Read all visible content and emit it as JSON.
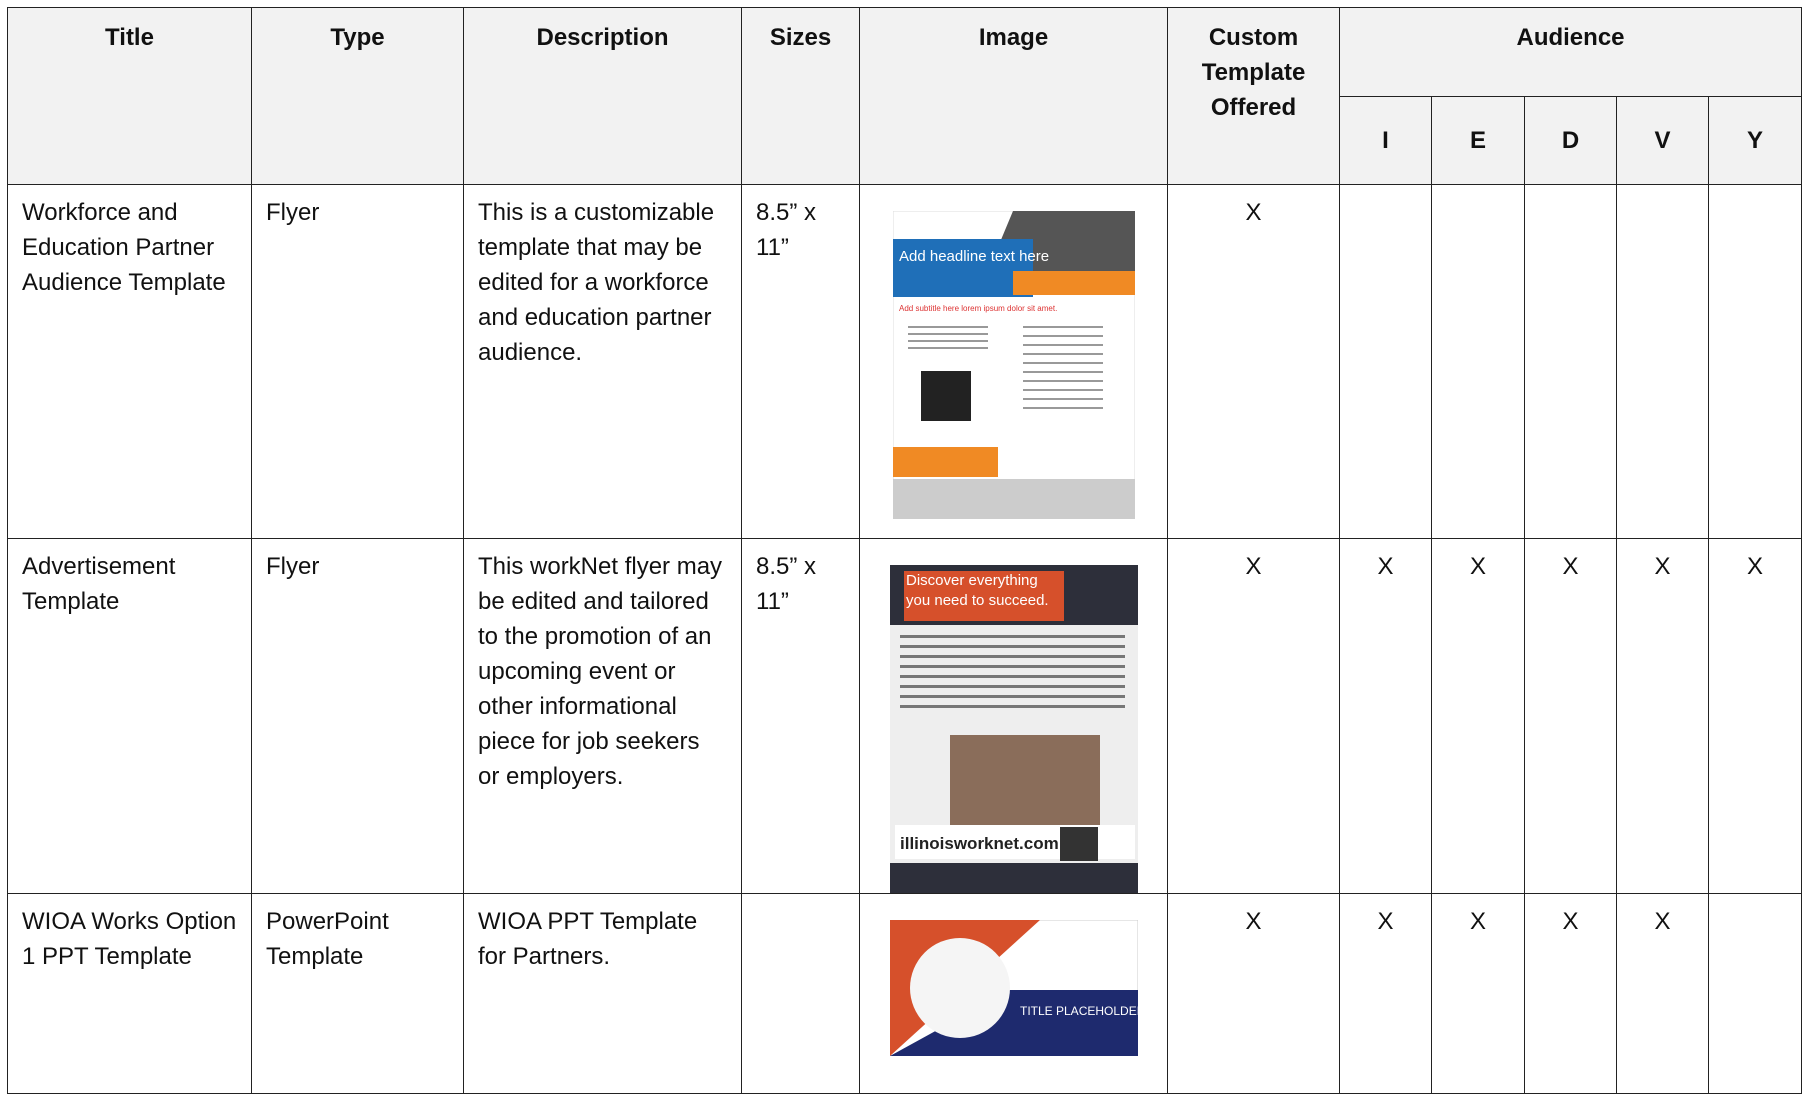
{
  "table": {
    "header": {
      "title": "Title",
      "type": "Type",
      "description": "Description",
      "sizes": "Sizes",
      "image": "Image",
      "custom": "Custom Template Offered",
      "audience": "Audience",
      "audience_columns": [
        "I",
        "E",
        "D",
        "V",
        "Y"
      ]
    },
    "rows": [
      {
        "title": "Workforce and Education Partner Audience Template",
        "type": "Flyer",
        "description": "This is a customizable template that may be edited for a workforce and education partner audience.",
        "sizes": "8.5” x 11”",
        "image": {
          "headline": "Add headline text here",
          "subtitle": "Add subtitle here lorem ipsum dolor sit amet."
        },
        "custom": "X",
        "audience": [
          null,
          null,
          null,
          null,
          null
        ]
      },
      {
        "title": "Advertisement Template",
        "type": "Flyer",
        "description": "This workNet flyer may be edited and tailored to the promotion of an upcoming event or other informational piece for job seekers or employers.",
        "sizes": "8.5” x 11”",
        "image": {
          "headline": "Discover everything you need to succeed.",
          "url": "illinoisworknet.com"
        },
        "custom": "X",
        "audience": [
          "X",
          "X",
          "X",
          "X",
          "X"
        ]
      },
      {
        "title": "WIOA  Works Option 1 PPT Template",
        "type": "PowerPoint Template",
        "description": "WIOA PPT Template for Partners.",
        "sizes": null,
        "image": {
          "headline": "TITLE PLACEHOLDER"
        },
        "custom": "X",
        "audience": [
          "X",
          "X",
          "X",
          "X",
          null
        ]
      }
    ]
  }
}
